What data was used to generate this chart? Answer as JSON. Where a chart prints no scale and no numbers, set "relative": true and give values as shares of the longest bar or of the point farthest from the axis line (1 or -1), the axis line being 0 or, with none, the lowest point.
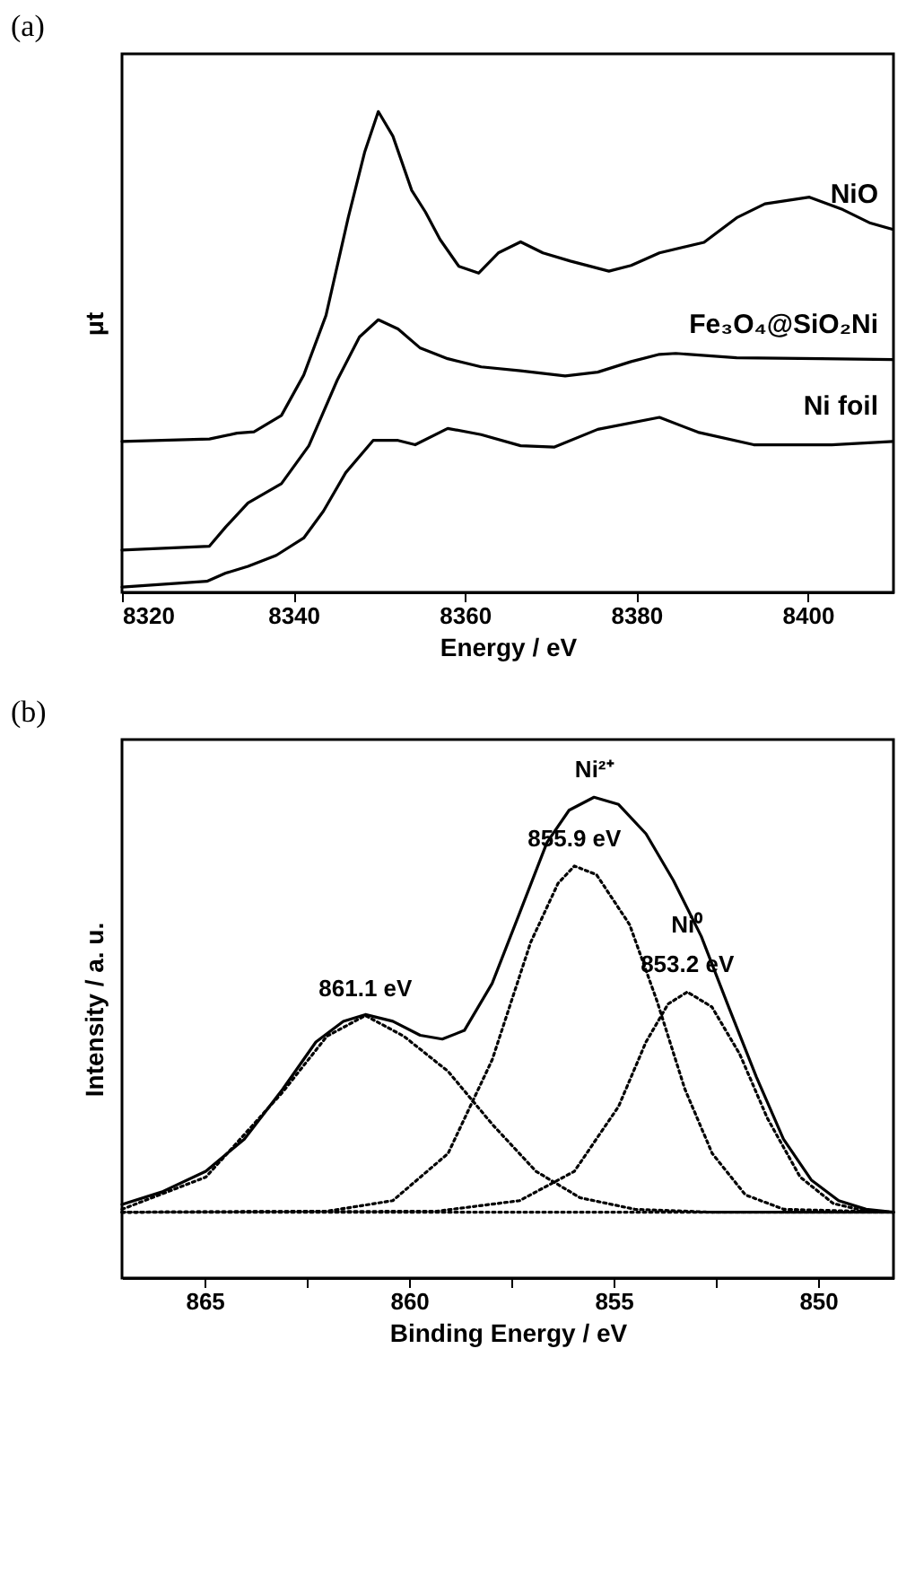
{
  "chart_data": [
    {
      "type": "line",
      "title": "(a)",
      "xlabel": "Energy / eV",
      "ylabel": "μt",
      "relative": true,
      "xlim": [
        8320,
        8410
      ],
      "xticks": [
        8320,
        8340,
        8360,
        8380,
        8400
      ],
      "grid": false,
      "marker": "none",
      "line_style": "solid",
      "series": [
        {
          "name": "NiO",
          "color": "#000000",
          "x": [
            8320,
            8330.2,
            8333.4,
            8335.4,
            8338.6,
            8341.2,
            8343.8,
            8346.4,
            8348.3,
            8349.9,
            8351.6,
            8353.8,
            8355.4,
            8357.1,
            8359.3,
            8361.6,
            8363.9,
            8366.5,
            8369.1,
            8372.3,
            8376.8,
            8379.4,
            8382.7,
            8387.9,
            8391.7,
            8395.0,
            8400.2,
            8404.1,
            8407.3,
            8409.9
          ],
          "values": [
            0.314,
            0.319,
            0.331,
            0.334,
            0.368,
            0.452,
            0.576,
            0.78,
            0.915,
            1.0,
            0.949,
            0.836,
            0.791,
            0.734,
            0.678,
            0.664,
            0.706,
            0.729,
            0.706,
            0.689,
            0.668,
            0.68,
            0.706,
            0.728,
            0.779,
            0.808,
            0.822,
            0.796,
            0.768,
            0.755
          ]
        },
        {
          "name": "Fe₃O₄@SiO₂Ni",
          "color": "#000000",
          "x": [
            8320,
            8330.2,
            8332.1,
            8334.7,
            8338.6,
            8341.8,
            8345.1,
            8347.7,
            8349.9,
            8352.2,
            8354.8,
            8358.0,
            8361.9,
            8366.5,
            8371.7,
            8375.5,
            8379.4,
            8382.7,
            8384.6,
            8391.7,
            8401.5,
            8409.9
          ],
          "values": [
            0.088,
            0.096,
            0.136,
            0.186,
            0.226,
            0.305,
            0.441,
            0.531,
            0.567,
            0.548,
            0.508,
            0.486,
            0.469,
            0.461,
            0.45,
            0.458,
            0.48,
            0.495,
            0.497,
            0.488,
            0.486,
            0.484
          ]
        },
        {
          "name": "Ni foil",
          "color": "#000000",
          "x": [
            8320,
            8329.9,
            8332.1,
            8334.7,
            8338.0,
            8341.2,
            8343.5,
            8346.1,
            8349.3,
            8352.2,
            8354.2,
            8358.0,
            8361.9,
            8366.5,
            8370.4,
            8375.5,
            8382.7,
            8387.2,
            8393.7,
            8402.8,
            8409.9
          ],
          "values": [
            0.011,
            0.023,
            0.04,
            0.054,
            0.077,
            0.113,
            0.169,
            0.249,
            0.316,
            0.316,
            0.307,
            0.341,
            0.328,
            0.305,
            0.302,
            0.339,
            0.364,
            0.333,
            0.307,
            0.307,
            0.314
          ]
        }
      ]
    },
    {
      "type": "line",
      "title": "(b)",
      "xlabel": "Binding Energy / eV",
      "ylabel": "Intensity / a. u.",
      "relative": true,
      "xlim": [
        867.02,
        848.16
      ],
      "xticks": [
        865,
        {
          "value": 862.5,
          "label": null
        },
        860,
        {
          "value": 857.5,
          "label": null
        },
        855,
        {
          "value": 852.5,
          "label": null
        },
        850
      ],
      "grid": false,
      "marker": "none",
      "annotations": [
        {
          "text": "Ni²⁺",
          "x": 855.48,
          "y": 1.0
        },
        {
          "text": "855.9 eV",
          "x": 855.96,
          "y": 0.857
        },
        {
          "text": "853.2 eV",
          "x": 853.2,
          "y": 0.595
        },
        {
          "text": "Ni⁰",
          "x": 853.2,
          "y": 0.595
        },
        {
          "text": "861.1 eV",
          "x": 861.07,
          "y": 0.546
        }
      ],
      "series": [
        {
          "color": "#000000",
          "line_style": "solid",
          "x": [
            867.02,
            866.05,
            864.97,
            864.03,
            863.09,
            862.28,
            861.61,
            861.07,
            860.4,
            859.73,
            859.19,
            858.65,
            857.97,
            857.3,
            856.63,
            856.09,
            855.48,
            854.88,
            854.21,
            853.54,
            852.86,
            852.19,
            851.51,
            850.85,
            850.17,
            849.5,
            848.83,
            848.16
          ],
          "values": [
            0.153,
            0.179,
            0.222,
            0.289,
            0.393,
            0.491,
            0.534,
            0.548,
            0.534,
            0.505,
            0.497,
            0.515,
            0.613,
            0.759,
            0.906,
            0.973,
            1.0,
            0.985,
            0.924,
            0.827,
            0.711,
            0.564,
            0.418,
            0.289,
            0.204,
            0.161,
            0.143,
            0.137
          ]
        },
        {
          "color": "#000000",
          "line_style": "dotted",
          "x": [
            867.02,
            864.97,
            863.09,
            862.01,
            861.07,
            860.13,
            859.05,
            857.97,
            856.9,
            855.82,
            854.48,
            852.59,
            848.16
          ],
          "values": [
            0.143,
            0.21,
            0.387,
            0.503,
            0.546,
            0.503,
            0.43,
            0.32,
            0.222,
            0.167,
            0.143,
            0.137,
            0.137
          ]
        },
        {
          "color": "#000000",
          "line_style": "dotted",
          "x": [
            867.02,
            862.01,
            860.4,
            859.05,
            857.97,
            857.03,
            856.36,
            855.96,
            855.42,
            854.61,
            853.94,
            853.26,
            852.59,
            851.78,
            850.84,
            848.16
          ],
          "values": [
            0.137,
            0.139,
            0.161,
            0.259,
            0.454,
            0.698,
            0.821,
            0.857,
            0.839,
            0.735,
            0.576,
            0.393,
            0.259,
            0.173,
            0.143,
            0.137
          ]
        },
        {
          "color": "#000000",
          "line_style": "dotted",
          "x": [
            867.02,
            859.32,
            857.3,
            855.96,
            854.88,
            854.21,
            853.67,
            853.2,
            852.6,
            851.92,
            851.24,
            850.44,
            849.63,
            848.82,
            848.16
          ],
          "values": [
            0.137,
            0.139,
            0.161,
            0.222,
            0.357,
            0.491,
            0.57,
            0.595,
            0.564,
            0.466,
            0.332,
            0.21,
            0.155,
            0.139,
            0.137
          ]
        },
        {
          "color": "#000000",
          "line_style": "dotted",
          "x": [
            867.02,
            848.16
          ],
          "values": [
            0.137,
            0.137
          ]
        }
      ]
    }
  ]
}
